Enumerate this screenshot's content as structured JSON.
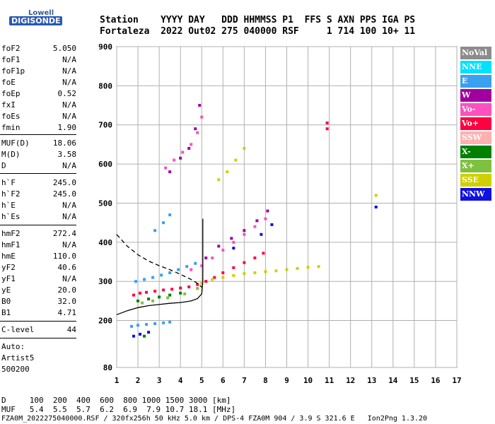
{
  "logo": {
    "line1": "Lowell",
    "line2": "DIGISONDE"
  },
  "header": {
    "row1": "Station    YYYY DAY   DDD HHMMSS P1  FFS S AXN PPS IGA PS",
    "row2": "Fortaleza  2022 Out02 275 040000 RSF     1 714 100 10+ 11"
  },
  "params": [
    {
      "name": "foF2",
      "value": "5.050"
    },
    {
      "name": "foF1",
      "value": "N/A"
    },
    {
      "name": "foF1p",
      "value": "N/A"
    },
    {
      "name": "foE",
      "value": "N/A"
    },
    {
      "name": "foEp",
      "value": "0.52"
    },
    {
      "name": "fxI",
      "value": "N/A"
    },
    {
      "name": "foEs",
      "value": "N/A"
    },
    {
      "name": "fmin",
      "value": "1.90"
    },
    {
      "name": "MUF(D)",
      "value": "18.06"
    },
    {
      "name": "M(D)",
      "value": "3.58"
    },
    {
      "name": "D",
      "value": "N/A"
    },
    {
      "name": "h`F",
      "value": "245.0"
    },
    {
      "name": "h`F2",
      "value": "245.0"
    },
    {
      "name": "h`E",
      "value": "N/A"
    },
    {
      "name": "h`Es",
      "value": "N/A"
    },
    {
      "name": "hmF2",
      "value": "272.4"
    },
    {
      "name": "hmF1",
      "value": "N/A"
    },
    {
      "name": "hmE",
      "value": "110.0"
    },
    {
      "name": "yF2",
      "value": "40.6"
    },
    {
      "name": "yF1",
      "value": "N/A"
    },
    {
      "name": "yE",
      "value": "20.0"
    },
    {
      "name": "B0",
      "value": "32.0"
    },
    {
      "name": "B1",
      "value": "4.71"
    },
    {
      "name": "C-level",
      "value": "44"
    }
  ],
  "auto": {
    "line1": "Auto:",
    "line2": "Artist5",
    "line3": "500200"
  },
  "legend": [
    {
      "label": "NoVal",
      "color": "#8c8c8c"
    },
    {
      "label": "NNE",
      "color": "#00e0ff"
    },
    {
      "label": "E",
      "color": "#3aa0f0"
    },
    {
      "label": "W",
      "color": "#a000a0"
    },
    {
      "label": "Vo-",
      "color": "#ff50c0"
    },
    {
      "label": "Vo+",
      "color": "#ff0040"
    },
    {
      "label": "SSW",
      "color": "#ffb0b0"
    },
    {
      "label": "X-",
      "color": "#008000"
    },
    {
      "label": "X+",
      "color": "#80c040"
    },
    {
      "label": "SSE",
      "color": "#d0d000"
    },
    {
      "label": "NNW",
      "color": "#1010e0"
    }
  ],
  "footer": {
    "d_row": "D     100  200  400  600  800 1000 1500 3000 [km]",
    "muf_row": "MUF   5.4  5.5  5.7  6.2  6.9  7.9 10.7 18.1 [MHz]",
    "file_row": "FZA0M_2022275040000.RSF / 320fx256h 50 kHz 5.0 km / DPS-4 FZA0M 904 / 3.9 S 321.6 E   Ion2Png 1.3.20"
  },
  "chart_data": {
    "type": "scatter",
    "xlim": [
      1,
      17
    ],
    "ylim": [
      80,
      900
    ],
    "x_ticks": [
      1,
      2,
      3,
      4,
      5,
      6,
      7,
      8,
      9,
      10,
      11,
      12,
      13,
      14,
      15,
      16,
      17
    ],
    "y_ticks": [
      80,
      200,
      300,
      400,
      500,
      600,
      700,
      800,
      900
    ],
    "grid": true,
    "series": [
      {
        "color": "#ff0040",
        "points": [
          [
            1.8,
            265
          ],
          [
            2.1,
            270
          ],
          [
            2.4,
            272
          ],
          [
            2.8,
            275
          ],
          [
            3.2,
            278
          ],
          [
            3.6,
            280
          ],
          [
            4.0,
            283
          ],
          [
            4.4,
            286
          ],
          [
            4.8,
            292
          ],
          [
            5.2,
            300
          ],
          [
            5.6,
            310
          ],
          [
            6.0,
            322
          ],
          [
            6.5,
            335
          ],
          [
            7.0,
            348
          ],
          [
            7.5,
            360
          ],
          [
            7.9,
            372
          ]
        ]
      },
      {
        "color": "#3aa0f0",
        "points": [
          [
            1.9,
            300
          ],
          [
            2.3,
            305
          ],
          [
            2.7,
            310
          ],
          [
            3.1,
            316
          ],
          [
            3.5,
            322
          ],
          [
            3.9,
            330
          ],
          [
            4.3,
            338
          ],
          [
            4.7,
            346
          ],
          [
            2.8,
            430
          ],
          [
            3.2,
            450
          ],
          [
            3.5,
            470
          ],
          [
            1.7,
            185
          ],
          [
            2.0,
            188
          ],
          [
            2.4,
            190
          ],
          [
            2.8,
            192
          ],
          [
            3.2,
            194
          ],
          [
            3.5,
            196
          ]
        ]
      },
      {
        "color": "#d0d000",
        "points": [
          [
            5.0,
            295
          ],
          [
            5.5,
            305
          ],
          [
            6.0,
            310
          ],
          [
            6.5,
            315
          ],
          [
            7.0,
            320
          ],
          [
            7.5,
            322
          ],
          [
            8.0,
            325
          ],
          [
            8.5,
            327
          ],
          [
            9.0,
            330
          ],
          [
            9.5,
            333
          ],
          [
            10.0,
            336
          ],
          [
            10.5,
            338
          ],
          [
            5.8,
            560
          ],
          [
            6.2,
            580
          ],
          [
            6.6,
            610
          ],
          [
            7.0,
            640
          ],
          [
            13.2,
            520
          ]
        ]
      },
      {
        "color": "#ff50c0",
        "points": [
          [
            4.5,
            330
          ],
          [
            5.0,
            340
          ],
          [
            5.5,
            360
          ],
          [
            6.0,
            380
          ],
          [
            6.5,
            400
          ],
          [
            7.0,
            420
          ],
          [
            7.5,
            440
          ],
          [
            8.0,
            460
          ],
          [
            3.3,
            590
          ],
          [
            3.7,
            610
          ],
          [
            4.1,
            630
          ],
          [
            4.5,
            650
          ],
          [
            4.8,
            680
          ],
          [
            5.0,
            720
          ]
        ]
      },
      {
        "color": "#a000a0",
        "points": [
          [
            5.2,
            360
          ],
          [
            5.8,
            390
          ],
          [
            6.4,
            410
          ],
          [
            7.0,
            430
          ],
          [
            7.6,
            455
          ],
          [
            8.1,
            480
          ],
          [
            3.5,
            580
          ],
          [
            4.0,
            615
          ],
          [
            4.4,
            640
          ],
          [
            4.7,
            690
          ],
          [
            4.9,
            750
          ]
        ]
      },
      {
        "color": "#1010e0",
        "points": [
          [
            1.8,
            160
          ],
          [
            2.1,
            165
          ],
          [
            2.5,
            170
          ],
          [
            6.5,
            385
          ],
          [
            7.8,
            420
          ],
          [
            8.3,
            445
          ],
          [
            13.2,
            490
          ]
        ]
      },
      {
        "color": "#008000",
        "points": [
          [
            2.0,
            250
          ],
          [
            2.5,
            255
          ],
          [
            3.0,
            260
          ],
          [
            3.5,
            265
          ],
          [
            4.0,
            270
          ],
          [
            2.3,
            160
          ]
        ]
      },
      {
        "color": "#80c040",
        "points": [
          [
            2.2,
            245
          ],
          [
            2.7,
            250
          ],
          [
            3.4,
            258
          ],
          [
            4.2,
            268
          ],
          [
            4.8,
            282
          ]
        ]
      },
      {
        "color": "#ff0040",
        "points": [
          [
            10.9,
            690
          ],
          [
            10.9,
            705
          ]
        ]
      }
    ],
    "curves": [
      {
        "style": "solid",
        "points": [
          [
            1,
            215
          ],
          [
            1.5,
            225
          ],
          [
            2,
            233
          ],
          [
            2.5,
            238
          ],
          [
            3,
            241
          ],
          [
            3.5,
            244
          ],
          [
            4,
            246
          ],
          [
            4.5,
            250
          ],
          [
            4.8,
            256
          ],
          [
            5.0,
            268
          ],
          [
            5.05,
            300
          ],
          [
            5.05,
            460
          ]
        ]
      },
      {
        "style": "dashed",
        "points": [
          [
            1,
            420
          ],
          [
            1.5,
            390
          ],
          [
            2,
            368
          ],
          [
            2.5,
            352
          ],
          [
            3,
            340
          ],
          [
            3.5,
            330
          ],
          [
            4,
            318
          ],
          [
            4.5,
            305
          ],
          [
            4.8,
            295
          ],
          [
            5.0,
            285
          ]
        ]
      }
    ]
  }
}
